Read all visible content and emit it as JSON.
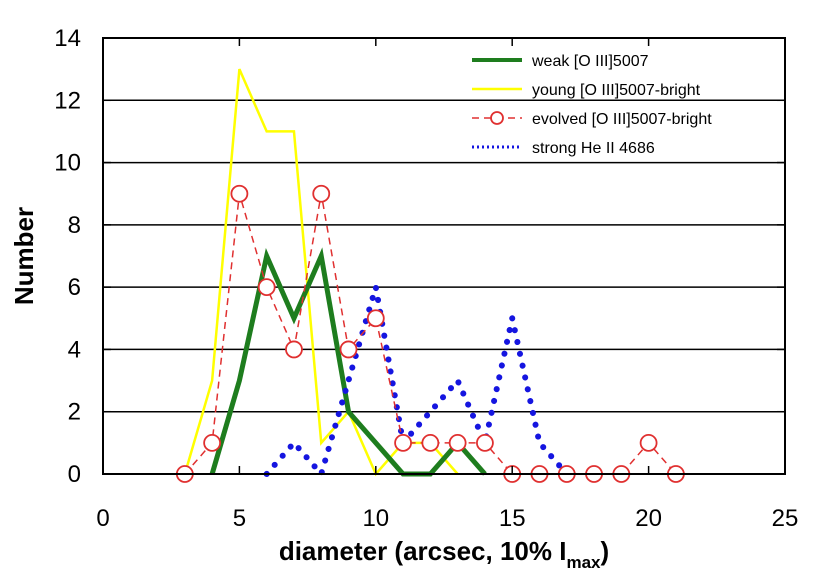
{
  "chart_data": {
    "type": "line",
    "title": "",
    "xlabel": "diameter (arcsec, 10% I",
    "xlabel_sub": "max",
    "xlabel_end": ")",
    "ylabel": "Number",
    "xlim": [
      0,
      25
    ],
    "ylim": [
      0,
      14
    ],
    "xticks": [
      0,
      5,
      10,
      15,
      20,
      25
    ],
    "yticks": [
      0,
      2,
      4,
      6,
      8,
      10,
      12,
      14
    ],
    "grid": "horizontal",
    "legend_position": "top-right",
    "series": [
      {
        "name": "weak [O III]5007",
        "color": "#1e7d1e",
        "style": "solid-thick",
        "x": [
          4,
          5,
          6,
          7,
          8,
          9,
          10,
          11,
          12,
          13,
          14
        ],
        "y": [
          0,
          3,
          7,
          5,
          7,
          2,
          1,
          0,
          0,
          1,
          0
        ]
      },
      {
        "name": "young [O III]5007-bright",
        "color": "#ffff00",
        "style": "solid",
        "x": [
          3,
          4,
          5,
          6,
          7,
          8,
          9,
          10,
          11,
          12,
          13
        ],
        "y": [
          0,
          3,
          13,
          11,
          11,
          1,
          2,
          0,
          1,
          1,
          0
        ]
      },
      {
        "name": "evolved [O III]5007-bright",
        "color": "#e03030",
        "style": "dashed-circles",
        "x": [
          3,
          4,
          5,
          6,
          7,
          8,
          9,
          10,
          11,
          12,
          13,
          14,
          15,
          16,
          17,
          18,
          19,
          20,
          21
        ],
        "y": [
          0,
          1,
          9,
          6,
          4,
          9,
          4,
          5,
          1,
          1,
          1,
          1,
          0,
          0,
          0,
          0,
          0,
          1,
          0
        ]
      },
      {
        "name": "strong He II 4686",
        "color": "#1515e0",
        "style": "dotted",
        "x": [
          6,
          7,
          8,
          9,
          10,
          11,
          12,
          13,
          14,
          15,
          16,
          17
        ],
        "y": [
          0,
          1,
          0,
          3,
          6,
          1,
          2,
          3,
          1,
          5,
          1,
          0
        ]
      }
    ]
  }
}
